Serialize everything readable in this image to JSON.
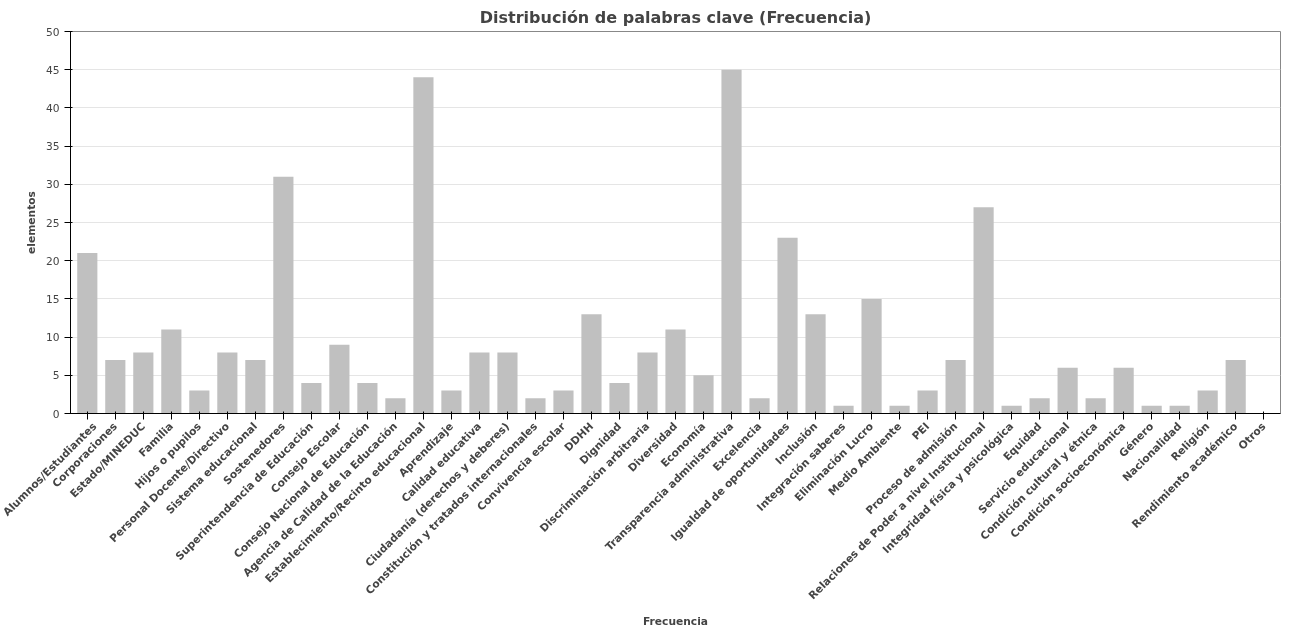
{
  "chart_data": {
    "type": "bar",
    "title": "Distribución de palabras clave (Frecuencia)",
    "xlabel": "Frecuencia",
    "ylabel": "elementos",
    "categories": [
      "Alumnos/Estudiantes",
      "Corporaciones",
      "Estado/MINEDUC",
      "Familia",
      "Hijos o pupilos",
      "Personal Docente/Directivo",
      "Sistema educacional",
      "Sostenedores",
      "Superintendencia de Educación",
      "Consejo Escolar",
      "Consejo Nacional de Educación",
      "Agencia de Calidad de la Educación",
      "Establecimiento/Recinto educacional",
      "Aprendizaje",
      "Calidad educativa",
      "Ciudadanía (derechos y deberes)",
      "Constitución y tratados internacionales",
      "Convivencia escolar",
      "DDHH",
      "Dignidad",
      "Discriminación arbitraria",
      "Diversidad",
      "Economía",
      "Transparencia administrativa",
      "Excelencia",
      "Igualdad de oportunidades",
      "Inclusión",
      "Integración saberes",
      "Eliminación Lucro",
      "Medio Ambiente",
      "PEI",
      "Proceso de admisión",
      "Relaciones de Poder a nivel Institucional",
      "Integridad física y psicológica",
      "Equidad",
      "Servicio educacional",
      "Condición cultural y étnica",
      "Condición socioeconómica",
      "Género",
      "Nacionalidad",
      "Religión",
      "Rendimiento académico",
      "Otros"
    ],
    "values": [
      21,
      7,
      8,
      11,
      3,
      8,
      7,
      31,
      4,
      9,
      4,
      2,
      44,
      3,
      8,
      8,
      2,
      3,
      13,
      4,
      8,
      11,
      5,
      45,
      2,
      23,
      13,
      1,
      15,
      1,
      3,
      7,
      27,
      1,
      2,
      6,
      2,
      6,
      1,
      1,
      3,
      7,
      0
    ],
    "color": "#c0c0c0",
    "ylim": [
      0,
      50
    ],
    "yticks": [
      0,
      5,
      10,
      15,
      20,
      25,
      30,
      35,
      40,
      45,
      50
    ],
    "grid": "y"
  }
}
